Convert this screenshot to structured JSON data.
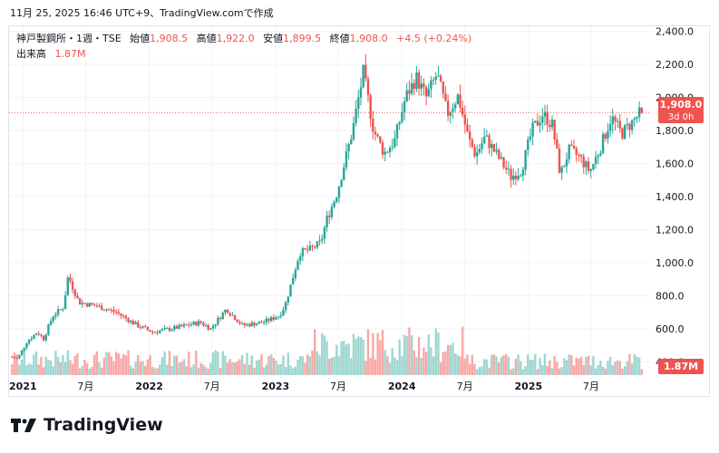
{
  "header": {
    "timestamp": "11月 25, 2025 16:46 UTC+9、",
    "source": "TradingView.comで作成"
  },
  "legend": {
    "symbol": "神戸製鋼所・1週・TSE",
    "open_label": "始値",
    "open": "1,908.5",
    "high_label": "高値",
    "high": "1,922.0",
    "low_label": "安値",
    "low": "1,899.5",
    "close_label": "終値",
    "close": "1,908.0",
    "change": "+4.5 (+0.24%)",
    "volume_label": "出来高",
    "volume": "1.87M"
  },
  "price_badge": {
    "price": "1,908.0",
    "countdown": "3d 0h"
  },
  "volume_badge": "1.87M",
  "brand": "TradingView",
  "colors": {
    "up": "#26a69a",
    "down": "#ef5350",
    "up_vol": "#9fd6d1",
    "down_vol": "#f7a9a7",
    "grid": "#f0f3fa"
  },
  "chart_data": {
    "type": "candlestick",
    "interval": "1週",
    "y_axis_ticks": [
      "400.0",
      "600.0",
      "800.0",
      "1,000.0",
      "1,200.0",
      "1,400.0",
      "1,600.0",
      "1,800.0",
      "2,000.0",
      "2,200.0",
      "2,400.0"
    ],
    "y_axis_values": [
      400,
      600,
      800,
      1000,
      1200,
      1400,
      1600,
      1800,
      2000,
      2200,
      2400
    ],
    "x_axis_ticks": [
      "2021",
      "7月",
      "2022",
      "7月",
      "2023",
      "7月",
      "2024",
      "7月",
      "2025",
      "7月"
    ],
    "x_axis_dates": [
      "2021-01-01",
      "2021-07-01",
      "2022-01-01",
      "2022-07-01",
      "2023-01-01",
      "2023-07-01",
      "2024-01-01",
      "2024-07-01",
      "2025-01-01",
      "2025-07-01"
    ],
    "x_range": [
      "2020-11-27",
      "2025-11-25"
    ],
    "ylim": [
      320,
      2430
    ],
    "anchors": [
      [
        "2020-11-27",
        430
      ],
      [
        "2020-12-20",
        420
      ],
      [
        "2021-01-15",
        520
      ],
      [
        "2021-02-15",
        580
      ],
      [
        "2021-03-05",
        540
      ],
      [
        "2021-04-01",
        680
      ],
      [
        "2021-05-01",
        730
      ],
      [
        "2021-05-15",
        920
      ],
      [
        "2021-06-15",
        760
      ],
      [
        "2021-08-01",
        740
      ],
      [
        "2021-10-01",
        700
      ],
      [
        "2021-12-01",
        620
      ],
      [
        "2022-01-15",
        580
      ],
      [
        "2022-04-01",
        610
      ],
      [
        "2022-06-01",
        640
      ],
      [
        "2022-07-01",
        600
      ],
      [
        "2022-08-15",
        720
      ],
      [
        "2022-10-01",
        620
      ],
      [
        "2022-12-01",
        640
      ],
      [
        "2023-01-15",
        680
      ],
      [
        "2023-02-01",
        740
      ],
      [
        "2023-03-15",
        1060
      ],
      [
        "2023-04-15",
        1080
      ],
      [
        "2023-05-15",
        1120
      ],
      [
        "2023-06-01",
        1260
      ],
      [
        "2023-07-01",
        1420
      ],
      [
        "2023-08-15",
        1800
      ],
      [
        "2023-09-15",
        2150
      ],
      [
        "2023-10-15",
        1800
      ],
      [
        "2023-11-15",
        1660
      ],
      [
        "2023-12-15",
        1740
      ],
      [
        "2024-01-15",
        2000
      ],
      [
        "2024-02-15",
        2120
      ],
      [
        "2024-03-15",
        2000
      ],
      [
        "2024-04-15",
        2140
      ],
      [
        "2024-05-15",
        1900
      ],
      [
        "2024-06-15",
        2010
      ],
      [
        "2024-07-15",
        1750
      ],
      [
        "2024-08-05",
        1650
      ],
      [
        "2024-09-01",
        1760
      ],
      [
        "2024-10-15",
        1620
      ],
      [
        "2024-11-15",
        1520
      ],
      [
        "2024-12-15",
        1560
      ],
      [
        "2025-01-15",
        1800
      ],
      [
        "2025-02-15",
        1900
      ],
      [
        "2025-03-15",
        1830
      ],
      [
        "2025-04-07",
        1530
      ],
      [
        "2025-05-01",
        1680
      ],
      [
        "2025-06-01",
        1640
      ],
      [
        "2025-07-01",
        1550
      ],
      [
        "2025-08-01",
        1700
      ],
      [
        "2025-09-01",
        1880
      ],
      [
        "2025-10-01",
        1780
      ],
      [
        "2025-11-25",
        1908
      ]
    ],
    "volume_scale": [
      0,
      6000000
    ],
    "last": {
      "open": 1908.5,
      "high": 1922.0,
      "low": 1899.5,
      "close": 1908.0
    }
  }
}
